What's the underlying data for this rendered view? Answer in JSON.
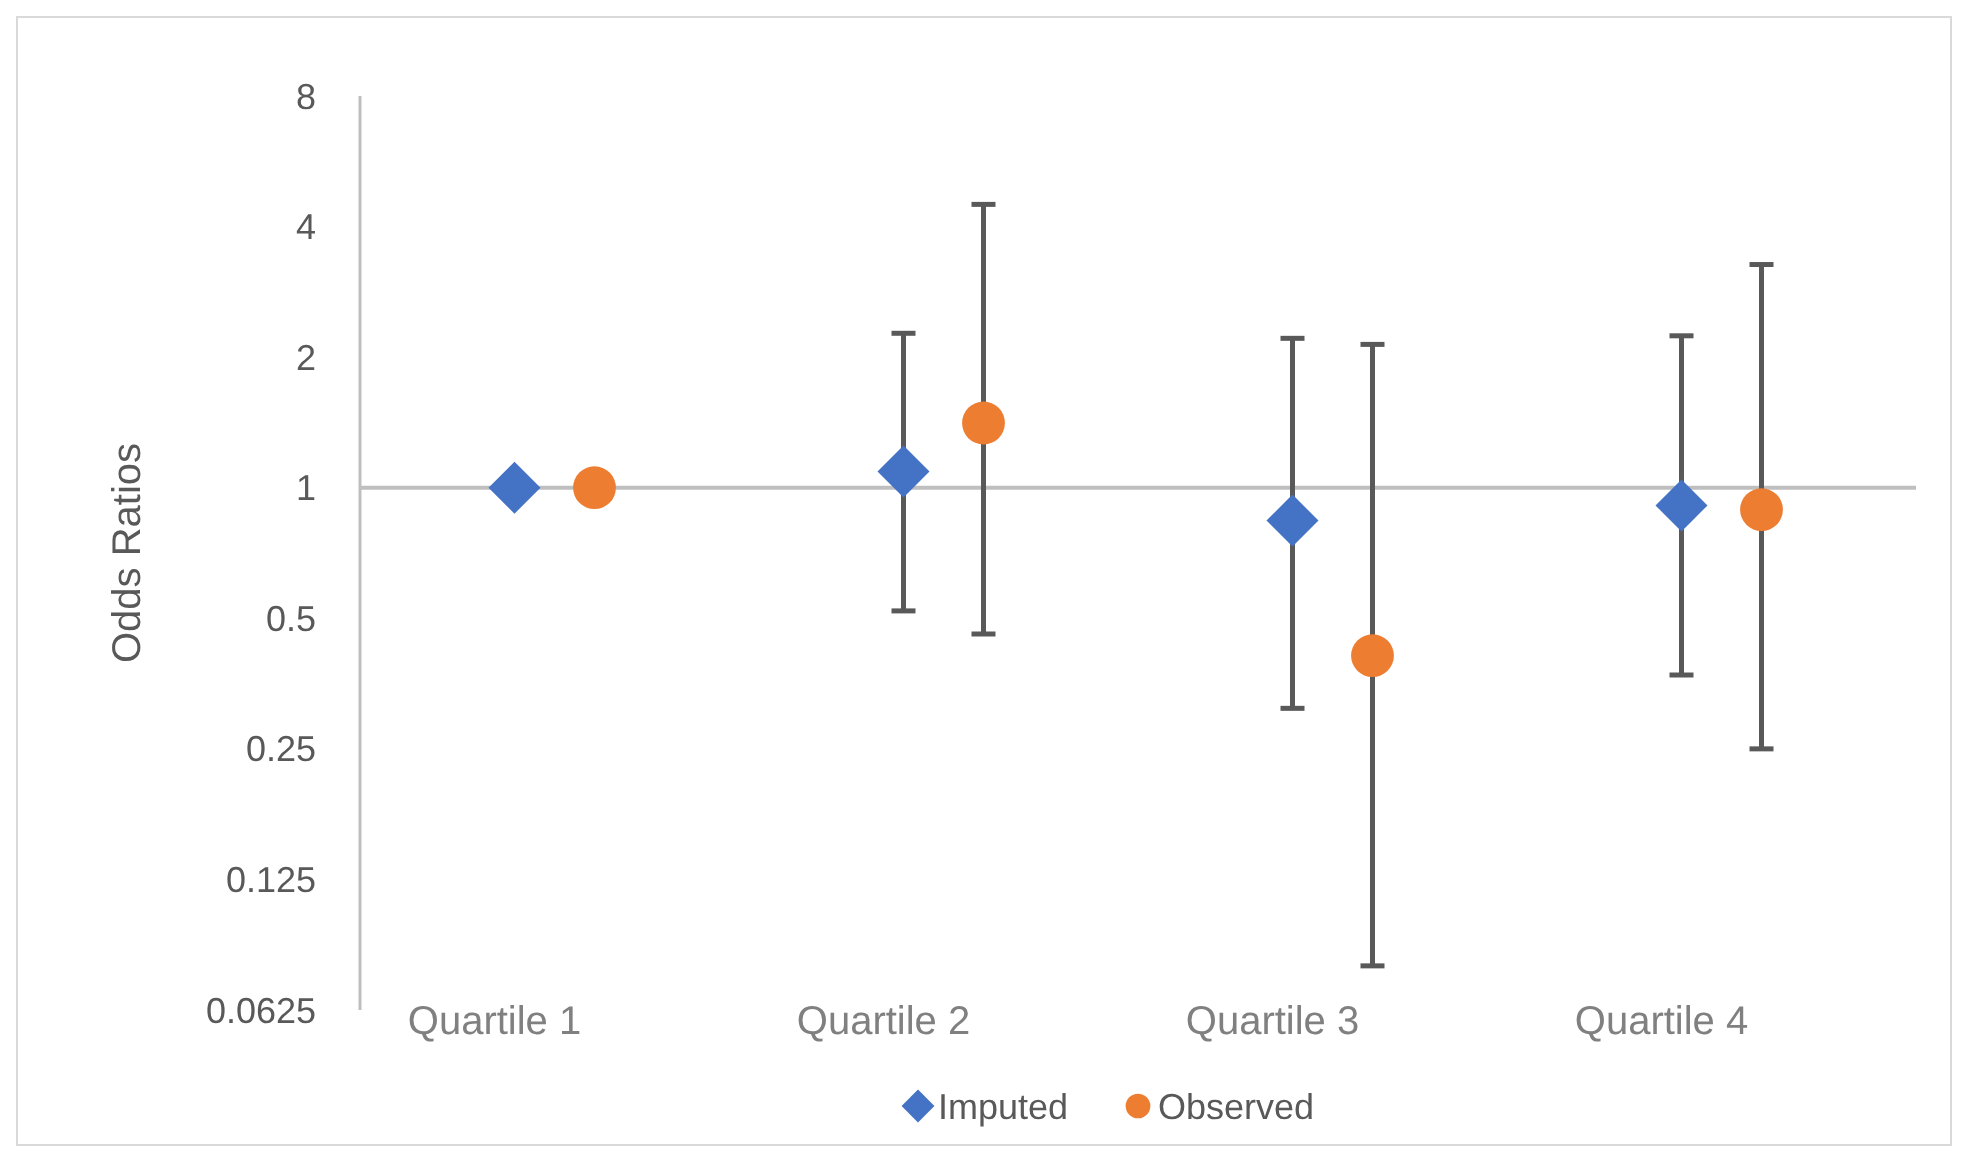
{
  "chart_data": {
    "type": "scatter",
    "ylabel": "Odds Ratios",
    "categories": [
      "Quartile 1",
      "Quartile 2",
      "Quartile 3",
      "Quartile 4"
    ],
    "log": "y",
    "ylim": [
      0.0625,
      8
    ],
    "yticks": [
      0.0625,
      0.125,
      0.25,
      0.5,
      1,
      2,
      4,
      8
    ],
    "grid": false,
    "ref_lines": [
      {
        "axis": "y",
        "value": 1,
        "color": "#bfbfbf"
      }
    ],
    "legend": "bottom",
    "series": [
      {
        "name": "Imputed",
        "color": "#4472c4",
        "marker": "diamond",
        "values": [
          1,
          1.09,
          0.84,
          0.91
        ],
        "errors": [
          null,
          [
            0.52,
            2.27
          ],
          [
            0.31,
            2.21
          ],
          [
            0.37,
            2.24
          ]
        ]
      },
      {
        "name": "Observed",
        "color": "#ed7d31",
        "marker": "circle",
        "values": [
          1,
          1.41,
          0.41,
          0.89
        ],
        "errors": [
          null,
          [
            0.46,
            4.5
          ],
          [
            0.079,
            2.14
          ],
          [
            0.25,
            3.27
          ]
        ]
      }
    ]
  }
}
